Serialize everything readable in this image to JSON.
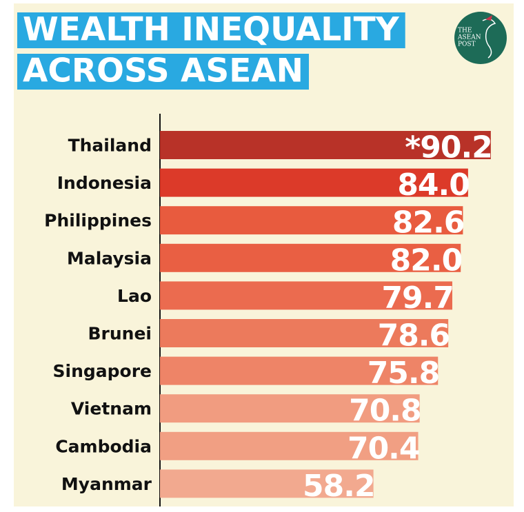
{
  "chart_data": {
    "type": "hbar",
    "title_lines": [
      "WEALTH INEQUALITY",
      "ACROSS ASEAN"
    ],
    "logo_lines": [
      "THE",
      "ASEAN",
      "POST"
    ],
    "categories": [
      "Thailand",
      "Indonesia",
      "Philippines",
      "Malaysia",
      "Lao",
      "Brunei",
      "Singapore",
      "Vietnam",
      "Cambodia",
      "Myanmar"
    ],
    "values": [
      90.2,
      84.0,
      82.6,
      82.0,
      79.7,
      78.6,
      75.8,
      70.8,
      70.4,
      58.2
    ],
    "value_labels": [
      "*90.2",
      "84.0",
      "82.6",
      "82.0",
      "79.7",
      "78.6",
      "75.8",
      "70.8",
      "70.4",
      "58.2"
    ],
    "colors": [
      "#b83228",
      "#dc3a29",
      "#e85b3e",
      "#e95f43",
      "#eb6b4f",
      "#ec7a5c",
      "#ee8467",
      "#f19c80",
      "#f19f83",
      "#f2a98f"
    ],
    "xlim": [
      0,
      100
    ]
  }
}
